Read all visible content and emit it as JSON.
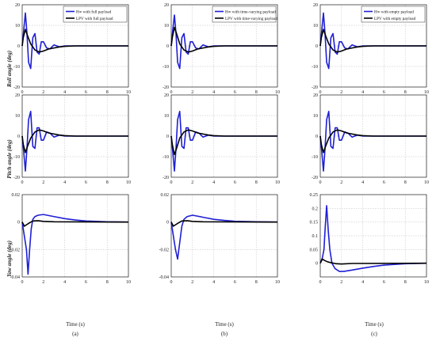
{
  "figure": {
    "xlabel": "Time (s)",
    "row_labels": [
      "Roll angle (deg)",
      "Pitch angle (deg)",
      "Yaw angle (deg)"
    ],
    "col_labels": [
      "(a)",
      "(b)",
      "(c)"
    ],
    "colors": {
      "hinf": "#1f1fd6",
      "lpv": "#000000",
      "axis": "#222222",
      "grid": "#bdbdbd"
    }
  },
  "chart_data": [
    {
      "type": "line",
      "row": 0,
      "col": 0,
      "ylim": [
        -20,
        20
      ],
      "yticks": [
        "20",
        "10",
        "0",
        "-10",
        "-20"
      ],
      "xlim": [
        0,
        10
      ],
      "xticks": [
        "0",
        "2",
        "4",
        "6",
        "8",
        "10"
      ],
      "grid": true,
      "legend": "top-right",
      "series": [
        {
          "name": "H∞ with full payload",
          "x": [
            0,
            0.15,
            0.3,
            0.45,
            0.6,
            0.8,
            1.0,
            1.2,
            1.4,
            1.6,
            1.8,
            2.0,
            2.3,
            2.6,
            3.0,
            3.5,
            4.0,
            5.0,
            10.0
          ],
          "y": [
            0,
            8,
            16,
            6,
            -8,
            -11,
            4,
            6,
            -3,
            -4,
            2,
            2,
            -1,
            -1.5,
            0.5,
            -0.5,
            0,
            0,
            0
          ]
        },
        {
          "name": "LPV with full payload",
          "x": [
            0,
            0.1,
            0.3,
            0.5,
            0.8,
            1.2,
            1.6,
            2.0,
            2.5,
            3.0,
            3.5,
            4.0,
            5.0,
            10.0
          ],
          "y": [
            0,
            4,
            8,
            5,
            1,
            -2,
            -3,
            -2.5,
            -1.5,
            -1,
            -0.5,
            -0.2,
            0,
            0
          ]
        }
      ]
    },
    {
      "type": "line",
      "row": 0,
      "col": 1,
      "ylim": [
        -20,
        20
      ],
      "yticks": [
        "20",
        "10",
        "0",
        "-10",
        "-20"
      ],
      "xlim": [
        0,
        10
      ],
      "xticks": [
        "0",
        "2",
        "4",
        "6",
        "8",
        "10"
      ],
      "grid": true,
      "legend": "top-right",
      "series": [
        {
          "name": "H∞ with time-varying payload",
          "x": [
            0,
            0.15,
            0.3,
            0.45,
            0.6,
            0.8,
            1.0,
            1.2,
            1.4,
            1.6,
            1.8,
            2.0,
            2.3,
            2.6,
            3.0,
            3.5,
            4.0,
            5.0,
            10.0
          ],
          "y": [
            0,
            8,
            15,
            6,
            -8,
            -11,
            4,
            6,
            -3,
            -4,
            2,
            2,
            -1,
            -1.5,
            0.5,
            -0.5,
            0,
            0,
            0
          ]
        },
        {
          "name": "LPV with time-varying payload",
          "x": [
            0,
            0.1,
            0.3,
            0.5,
            0.8,
            1.2,
            1.6,
            2.0,
            2.5,
            3.0,
            3.5,
            4.0,
            5.0,
            10.0
          ],
          "y": [
            0,
            4,
            9,
            6,
            1,
            -2,
            -3,
            -2.5,
            -1.5,
            -1,
            -0.5,
            -0.2,
            0,
            0
          ]
        }
      ]
    },
    {
      "type": "line",
      "row": 0,
      "col": 2,
      "ylim": [
        -20,
        20
      ],
      "yticks": [
        "20",
        "10",
        "0",
        "-10",
        "-20"
      ],
      "xlim": [
        0,
        10
      ],
      "xticks": [
        "0",
        "2",
        "4",
        "6",
        "8",
        "10"
      ],
      "grid": true,
      "legend": "top-right",
      "series": [
        {
          "name": "H∞ with empty payload",
          "x": [
            0,
            0.15,
            0.3,
            0.45,
            0.6,
            0.8,
            1.0,
            1.2,
            1.4,
            1.6,
            1.8,
            2.0,
            2.3,
            2.6,
            3.0,
            3.5,
            4.0,
            5.0,
            10.0
          ],
          "y": [
            0,
            8,
            16,
            6,
            -8,
            -11,
            4,
            6,
            -3,
            -4,
            2,
            2,
            -1,
            -1.5,
            0.5,
            -0.5,
            0,
            0,
            0
          ]
        },
        {
          "name": "LPV with empty payload",
          "x": [
            0,
            0.1,
            0.3,
            0.5,
            0.8,
            1.2,
            1.6,
            2.0,
            2.5,
            3.0,
            3.5,
            4.0,
            5.0,
            10.0
          ],
          "y": [
            0,
            4,
            8,
            5,
            1,
            -2,
            -3,
            -2.5,
            -1.5,
            -1,
            -0.5,
            -0.2,
            0,
            0
          ]
        }
      ]
    },
    {
      "type": "line",
      "row": 1,
      "col": 0,
      "ylim": [
        -20,
        20
      ],
      "yticks": [
        "20",
        "10",
        "0",
        "-10",
        "-20"
      ],
      "xlim": [
        0,
        10
      ],
      "xticks": [
        "0",
        "2",
        "4",
        "6",
        "8",
        "10"
      ],
      "grid": true,
      "series": [
        {
          "name": "",
          "x": [
            0,
            0.15,
            0.3,
            0.45,
            0.6,
            0.8,
            1.0,
            1.2,
            1.4,
            1.6,
            1.8,
            2.0,
            2.3,
            2.6,
            3.0,
            3.5,
            4.0,
            5.0,
            10.0
          ],
          "y": [
            0,
            -8,
            -17,
            -6,
            8,
            12,
            -5,
            -6,
            4,
            4,
            -2,
            -2,
            2,
            1.5,
            -0.5,
            0.5,
            0,
            0,
            0
          ]
        },
        {
          "name": "",
          "x": [
            0,
            0.1,
            0.3,
            0.5,
            0.8,
            1.2,
            1.6,
            2.0,
            2.5,
            3.0,
            3.5,
            4.0,
            5.0,
            10.0
          ],
          "y": [
            0,
            -4,
            -8,
            -5,
            -1,
            2,
            3,
            2.5,
            1.5,
            1,
            0.5,
            0.2,
            0,
            0
          ]
        }
      ]
    },
    {
      "type": "line",
      "row": 1,
      "col": 1,
      "ylim": [
        -20,
        20
      ],
      "yticks": [
        "20",
        "10",
        "0",
        "-10",
        "-20"
      ],
      "xlim": [
        0,
        10
      ],
      "xticks": [
        "0",
        "2",
        "4",
        "6",
        "8",
        "10"
      ],
      "grid": true,
      "series": [
        {
          "name": "",
          "x": [
            0,
            0.15,
            0.3,
            0.45,
            0.6,
            0.8,
            1.0,
            1.2,
            1.4,
            1.6,
            1.8,
            2.0,
            2.3,
            2.6,
            3.0,
            3.5,
            4.0,
            5.0,
            10.0
          ],
          "y": [
            0,
            -8,
            -17,
            -6,
            8,
            12,
            -5,
            -6,
            4,
            4,
            -2,
            -2,
            2,
            1.5,
            -0.5,
            0.5,
            0,
            0,
            0
          ]
        },
        {
          "name": "",
          "x": [
            0,
            0.1,
            0.3,
            0.5,
            0.8,
            1.2,
            1.6,
            2.0,
            2.5,
            3.0,
            3.5,
            4.0,
            5.0,
            10.0
          ],
          "y": [
            0,
            -4,
            -9,
            -6,
            -1,
            2,
            3,
            2.5,
            1.5,
            1,
            0.5,
            0.2,
            0,
            0
          ]
        }
      ]
    },
    {
      "type": "line",
      "row": 1,
      "col": 2,
      "ylim": [
        -20,
        20
      ],
      "yticks": [
        "20",
        "10",
        "0",
        "-10",
        "-20"
      ],
      "xlim": [
        0,
        10
      ],
      "xticks": [
        "0",
        "2",
        "4",
        "6",
        "8",
        "10"
      ],
      "grid": true,
      "series": [
        {
          "name": "",
          "x": [
            0,
            0.15,
            0.3,
            0.45,
            0.6,
            0.8,
            1.0,
            1.2,
            1.4,
            1.6,
            1.8,
            2.0,
            2.3,
            2.6,
            3.0,
            3.5,
            4.0,
            5.0,
            10.0
          ],
          "y": [
            0,
            -8,
            -17,
            -6,
            8,
            12,
            -5,
            -6,
            4,
            4,
            -2,
            -2,
            2,
            1.5,
            -0.5,
            0.5,
            0,
            0,
            0
          ]
        },
        {
          "name": "",
          "x": [
            0,
            0.1,
            0.3,
            0.5,
            0.8,
            1.2,
            1.6,
            2.0,
            2.5,
            3.0,
            3.5,
            4.0,
            5.0,
            10.0
          ],
          "y": [
            0,
            -4,
            -8,
            -5,
            -1,
            2,
            3,
            2.5,
            1.5,
            1,
            0.5,
            0.2,
            0,
            0
          ]
        }
      ]
    },
    {
      "type": "line",
      "row": 2,
      "col": 0,
      "ylim": [
        -0.04,
        0.02
      ],
      "yticks": [
        "0.02",
        "0",
        "-0.02",
        "-0.04"
      ],
      "xlim": [
        0,
        10
      ],
      "xticks": [
        "0",
        "2",
        "4",
        "6",
        "8",
        "10"
      ],
      "grid": true,
      "series": [
        {
          "name": "",
          "x": [
            0,
            0.2,
            0.4,
            0.55,
            0.7,
            0.85,
            1.0,
            1.2,
            1.5,
            2.0,
            3.0,
            4.0,
            5.0,
            6.0,
            8.0,
            10.0
          ],
          "y": [
            0,
            -0.01,
            -0.02,
            -0.038,
            -0.02,
            -0.005,
            0.002,
            0.004,
            0.005,
            0.0055,
            0.004,
            0.0025,
            0.0015,
            0.0008,
            0.0002,
            0
          ]
        },
        {
          "name": "",
          "x": [
            0,
            0.2,
            0.4,
            0.7,
            1.0,
            1.5,
            2.0,
            3.0,
            10.0
          ],
          "y": [
            0,
            -0.003,
            -0.002,
            -0.0005,
            0.0008,
            0.001,
            0.0005,
            0.0002,
            0
          ]
        }
      ]
    },
    {
      "type": "line",
      "row": 2,
      "col": 1,
      "ylim": [
        -0.04,
        0.02
      ],
      "yticks": [
        "0.02",
        "0",
        "-0.02",
        "-0.04"
      ],
      "xlim": [
        0,
        10
      ],
      "xticks": [
        "0",
        "2",
        "4",
        "6",
        "8",
        "10"
      ],
      "grid": true,
      "series": [
        {
          "name": "",
          "x": [
            0,
            0.2,
            0.4,
            0.6,
            0.8,
            1.0,
            1.2,
            1.5,
            2.0,
            3.0,
            4.0,
            5.0,
            6.0,
            8.0,
            10.0
          ],
          "y": [
            0,
            -0.01,
            -0.02,
            -0.027,
            -0.015,
            -0.003,
            0.002,
            0.004,
            0.005,
            0.0035,
            0.002,
            0.0012,
            0.0006,
            0.0002,
            0
          ]
        },
        {
          "name": "",
          "x": [
            0,
            0.2,
            0.4,
            0.7,
            1.0,
            1.5,
            2.0,
            3.0,
            10.0
          ],
          "y": [
            0,
            -0.003,
            -0.002,
            -0.0005,
            0.0008,
            0.001,
            0.0005,
            0.0002,
            0
          ]
        }
      ]
    },
    {
      "type": "line",
      "row": 2,
      "col": 2,
      "ylim": [
        -0.05,
        0.25
      ],
      "yticks": [
        "0.25",
        "0.2",
        "0.15",
        "0.1",
        "0.05",
        "0"
      ],
      "xlim": [
        0,
        10
      ],
      "xticks": [
        "0",
        "2",
        "4",
        "6",
        "8",
        "10"
      ],
      "grid": true,
      "series": [
        {
          "name": "",
          "x": [
            0,
            0.2,
            0.35,
            0.45,
            0.6,
            0.75,
            0.9,
            1.1,
            1.4,
            1.8,
            2.2,
            3.0,
            4.0,
            5.0,
            6.0,
            8.0,
            10.0
          ],
          "y": [
            0,
            0.02,
            0.05,
            0.12,
            0.21,
            0.12,
            0.05,
            0.0,
            -0.02,
            -0.03,
            -0.03,
            -0.025,
            -0.018,
            -0.012,
            -0.007,
            -0.002,
            0
          ]
        },
        {
          "name": "",
          "x": [
            0,
            0.2,
            0.4,
            0.7,
            1.0,
            1.5,
            2.0,
            3.0,
            10.0
          ],
          "y": [
            0,
            0.015,
            0.01,
            0.005,
            0.002,
            -0.002,
            -0.003,
            -0.001,
            0
          ]
        }
      ]
    }
  ]
}
